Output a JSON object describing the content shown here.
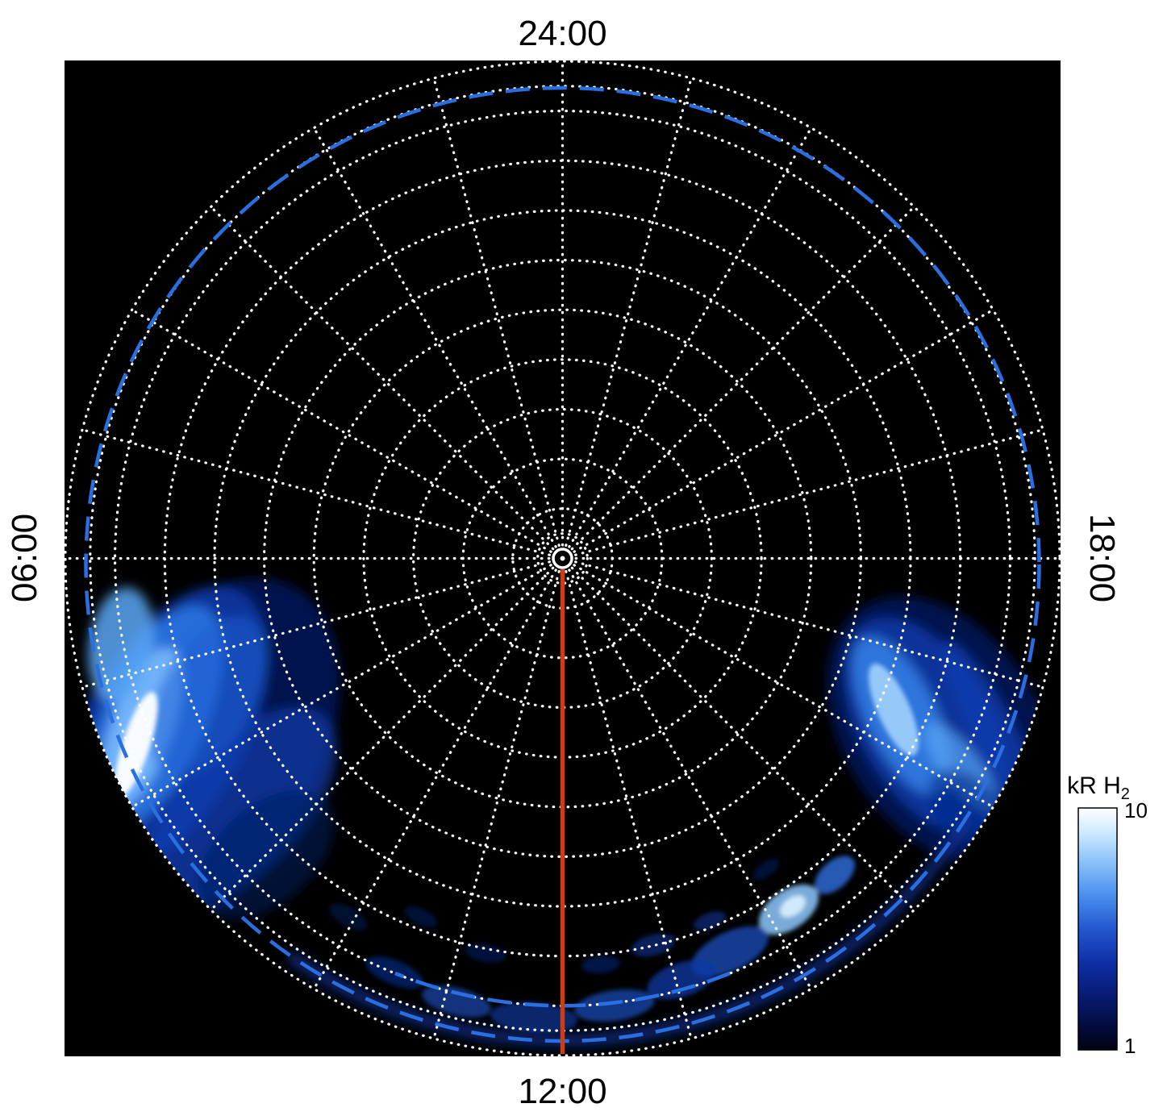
{
  "chart_data": {
    "type": "heatmap",
    "projection": "polar, pole-centered planetary disc with local time around the limb",
    "background": "#000000",
    "angular_axis": {
      "direction": "local time increases counterclockwise",
      "labels": [
        {
          "local_time": "24:00",
          "position": "top"
        },
        {
          "local_time": "06:00",
          "position": "left"
        },
        {
          "local_time": "12:00",
          "position": "bottom"
        },
        {
          "local_time": "18:00",
          "position": "right"
        }
      ]
    },
    "grid": {
      "color": "#ffffff",
      "style": "dotted",
      "spoke_count": 24,
      "spoke_inner_fraction": 0.027,
      "ring_fractions": [
        0.05,
        0.1,
        0.2,
        0.3,
        0.4,
        0.5,
        0.6,
        0.7,
        0.8,
        0.9,
        0.95,
        1.0
      ]
    },
    "reference_oval": {
      "style": "dashed",
      "color": "#2a6fe0",
      "radius_fraction": 0.958,
      "note": "dashed blue circle just inside the limb, plus a short inner dashed arc near 12:00"
    },
    "meridian_line": {
      "local_time": "12:00",
      "color": "#d63a0a",
      "from": "disc center",
      "to": "limb"
    },
    "center_marker": {
      "shape": "small white circle with dot",
      "color": "#ffffff"
    },
    "colorbar": {
      "title_main": "kR H",
      "title_sub": "2",
      "label": "kR H2",
      "min": 1,
      "max": 10,
      "orientation": "vertical",
      "gradient_top_to_bottom": [
        "#ffffff",
        "#cfeaff",
        "#8cc3f8",
        "#4b90ee",
        "#2357cf",
        "#0f2fa6",
        "#071b73",
        "#030c3f",
        "#010312"
      ]
    },
    "emission_features": [
      {
        "name": "dawn-limb-patch",
        "local_time_range": "05:00-08:00",
        "radial_extent": "0.72-1.0 R",
        "peak_intensity_kR": 10,
        "description": "bright streaked emission hugging the dawn (left) limb, brightest whitish streak near the limb"
      },
      {
        "name": "dusk-limb-patch",
        "local_time_range": "16:00-18:30",
        "radial_extent": "0.8-1.0 R",
        "peak_intensity_kR": 7,
        "description": "streaked blue emission at the dusk (right) limb with small bright cores"
      },
      {
        "name": "noon-limb-arc",
        "local_time_range": "09:00-15:00",
        "radial_extent": "0.9-1.0 R",
        "peak_intensity_kR": 4,
        "description": "patchy faint blue arc along the limb around 12:00 local time with one brighter knot near 14:00"
      }
    ]
  }
}
